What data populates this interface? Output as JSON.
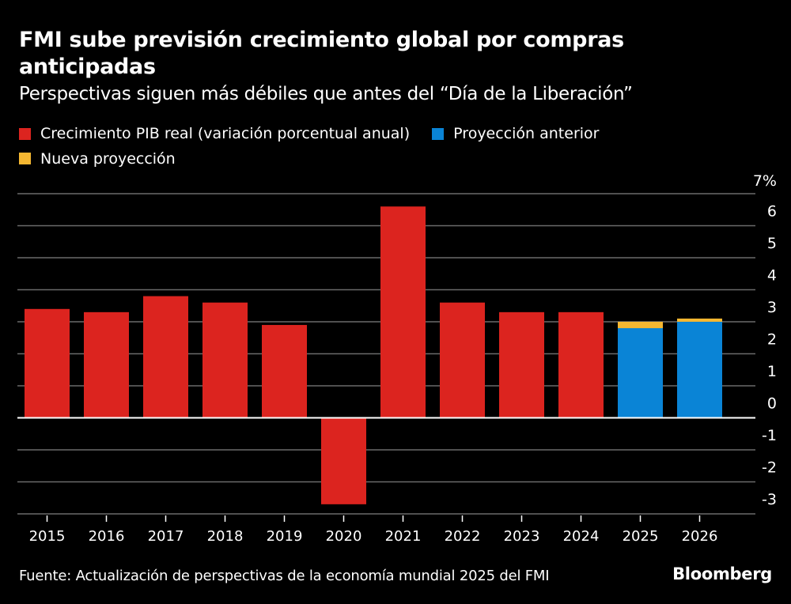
{
  "header": {
    "title": "FMI sube previsión crecimiento global por compras anticipadas",
    "subtitle": "Perspectivas siguen más débiles que antes del “Día de la Liberación”"
  },
  "legend": [
    {
      "label": "Crecimiento PIB real (variación porcentual anual)",
      "color": "#dc241f"
    },
    {
      "label": "Proyección anterior",
      "color": "#0a84d6"
    },
    {
      "label": "Nueva proyección",
      "color": "#f5b731"
    }
  ],
  "footer": {
    "source": "Fuente: Actualización de perspectivas de la economía mundial 2025 del FMI",
    "brand": "Bloomberg"
  },
  "chart_data": {
    "type": "bar",
    "title": "FMI sube previsión crecimiento global por compras anticipadas",
    "subtitle": "Perspectivas siguen más débiles que antes del “Día de la Liberación”",
    "xlabel": "",
    "ylabel": "%",
    "ylim": [
      -3,
      7
    ],
    "yticks": [
      7,
      6,
      5,
      4,
      3,
      2,
      1,
      0,
      -1,
      -2,
      -3
    ],
    "ytick_labels": [
      "7%",
      "6",
      "5",
      "4",
      "3",
      "2",
      "1",
      "0",
      "-1",
      "-2",
      "-3"
    ],
    "y_axis_side": "right",
    "grid": true,
    "legend_position": "top-left",
    "categories": [
      "2015",
      "2016",
      "2017",
      "2018",
      "2019",
      "2020",
      "2021",
      "2022",
      "2023",
      "2024",
      "2025",
      "2026"
    ],
    "series": [
      {
        "name": "Crecimiento PIB real (variación porcentual anual)",
        "color": "#dc241f",
        "values": [
          3.4,
          3.3,
          3.8,
          3.6,
          2.9,
          -2.7,
          6.6,
          3.6,
          3.3,
          3.3,
          null,
          null
        ]
      },
      {
        "name": "Proyección anterior",
        "color": "#0a84d6",
        "values": [
          null,
          null,
          null,
          null,
          null,
          null,
          null,
          null,
          null,
          null,
          2.8,
          3.0
        ]
      },
      {
        "name": "Nueva proyección",
        "color": "#f5b731",
        "values": [
          null,
          null,
          null,
          null,
          null,
          null,
          null,
          null,
          null,
          null,
          3.0,
          3.1
        ]
      }
    ]
  }
}
